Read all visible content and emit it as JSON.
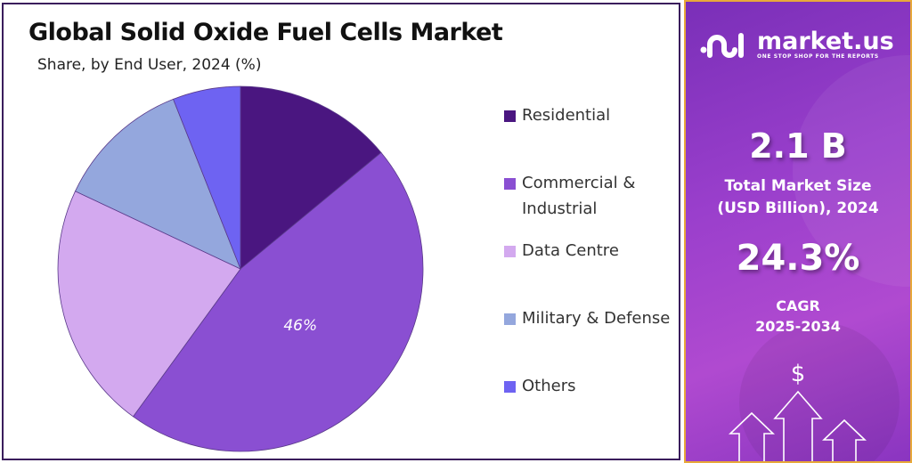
{
  "title": "Global Solid Oxide Fuel Cells Market",
  "subtitle": "Share, by End User, 2024 (%)",
  "chart_data": {
    "type": "pie",
    "title": "Global Solid Oxide Fuel Cells Market",
    "subtitle": "Share, by End User, 2024 (%)",
    "categories": [
      "Residential",
      "Commercial & Industrial",
      "Data Centre",
      "Military & Defense",
      "Others"
    ],
    "values": [
      14,
      46,
      22,
      12,
      6
    ],
    "colors": [
      "#4a1680",
      "#8a4fd2",
      "#d3a9ef",
      "#94a7dd",
      "#6e63f2"
    ],
    "data_labels": {
      "Commercial & Industrial": "46%"
    },
    "legend_position": "right",
    "start_angle": "top, clockwise"
  },
  "legend": [
    {
      "label": "Residential"
    },
    {
      "label": "Commercial &",
      "label2": "Industrial"
    },
    {
      "label": "Data Centre"
    },
    {
      "label": "Military & Defense"
    },
    {
      "label": "Others"
    }
  ],
  "panel": {
    "brand": "market.us",
    "tagline": "ONE STOP SHOP FOR THE REPORTS",
    "market_size": "2.1 B",
    "market_size_label1": "Total Market Size",
    "market_size_label2": "(USD Billion), 2024",
    "cagr": "24.3%",
    "cagr_label1": "CAGR",
    "cagr_label2": "2025-2034",
    "dollar": "$",
    "accent": "#e8a93a"
  }
}
